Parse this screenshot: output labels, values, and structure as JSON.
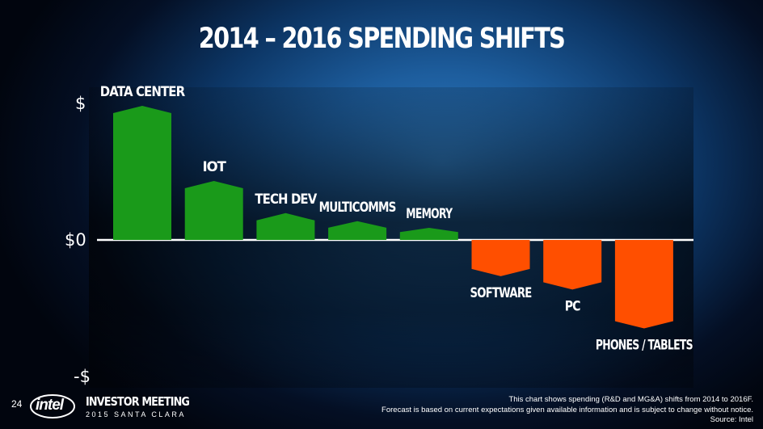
{
  "title": "2014 – 2016 SPENDING SHIFTS",
  "page_number": "24",
  "footer": {
    "brand": "intel",
    "event_title": "INVESTOR MEETING",
    "event_subtitle": "2015 SANTA CLARA",
    "disclaimer_line1": "This chart shows spending (R&D and MG&A) shifts from 2014  to 2016F.",
    "disclaimer_line2": "Forecast is based on current expectations given available information and is subject to change without notice.",
    "disclaimer_line3": "Source: Intel"
  },
  "colors": {
    "positive": "#1a9a1a",
    "negative": "#ff4f00",
    "axis": "#ffffff"
  },
  "chart_data": {
    "type": "bar",
    "title": "2014 – 2016 SPENDING SHIFTS",
    "y_tick_labels": [
      "$",
      "$0",
      "-$"
    ],
    "ylim": [
      -1,
      1
    ],
    "grid": false,
    "categories": [
      "DATA CENTER",
      "IOT",
      "TECH DEV",
      "MULTICOMMS",
      "MEMORY",
      "SOFTWARE",
      "PC",
      "PHONES / TABLETS"
    ],
    "values": [
      1.0,
      0.44,
      0.2,
      0.14,
      0.09,
      -0.27,
      -0.37,
      -0.66
    ]
  }
}
